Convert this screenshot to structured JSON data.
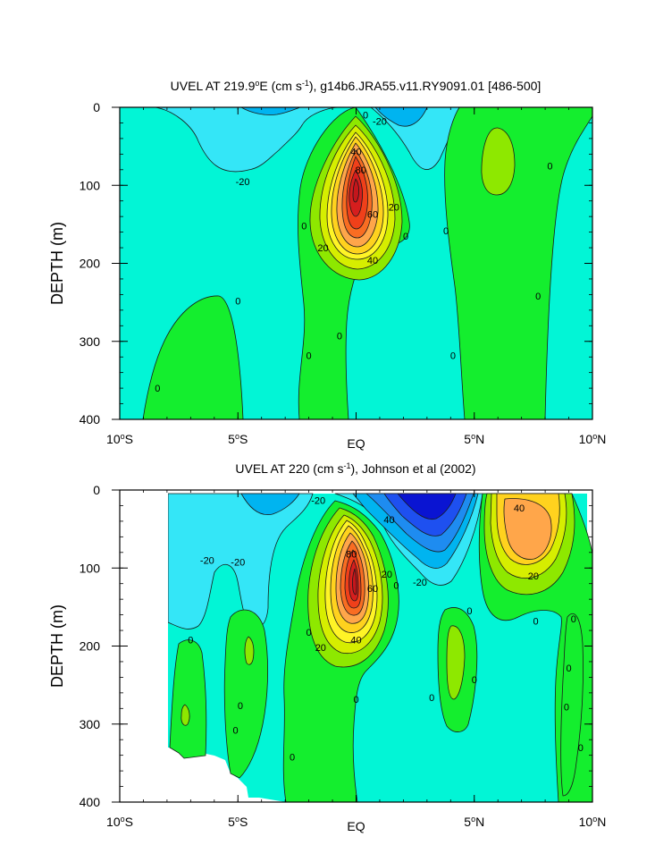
{
  "chart_data": [
    {
      "type": "contour",
      "title_prefix": "UVEL AT 219.9",
      "title_sup": "o",
      "title_mid": "E (cm s",
      "title_sup2": "-1",
      "title_suffix": "), g14b6.JRA55.v11.RY9091.01 [486-500]",
      "xlabel": "",
      "ylabel": "DEPTH (m)",
      "xlim": [
        -10,
        10
      ],
      "ylim": [
        400,
        0
      ],
      "x_ticks": [
        {
          "value": -10,
          "num": "10",
          "sup": "o",
          "suffix": "S"
        },
        {
          "value": -5,
          "num": "5",
          "sup": "o",
          "suffix": "S"
        },
        {
          "value": 0,
          "num": "",
          "sup": "",
          "suffix": "EQ"
        },
        {
          "value": 5,
          "num": "5",
          "sup": "o",
          "suffix": "N"
        },
        {
          "value": 10,
          "num": "10",
          "sup": "o",
          "suffix": "N"
        }
      ],
      "y_ticks": [
        0,
        100,
        200,
        300,
        400
      ],
      "contour_labels": [
        {
          "x": 0.4,
          "y": 10,
          "text": "0"
        },
        {
          "x": 1.0,
          "y": 18,
          "text": "-20"
        },
        {
          "x": -4.8,
          "y": 95,
          "text": "-20"
        },
        {
          "x": 0.0,
          "y": 57,
          "text": "40"
        },
        {
          "x": 0.2,
          "y": 80,
          "text": "80"
        },
        {
          "x": 0.7,
          "y": 137,
          "text": "60"
        },
        {
          "x": 1.6,
          "y": 128,
          "text": "20"
        },
        {
          "x": -1.4,
          "y": 180,
          "text": "20"
        },
        {
          "x": 0.7,
          "y": 196,
          "text": "40"
        },
        {
          "x": -2.2,
          "y": 152,
          "text": "0"
        },
        {
          "x": 2.1,
          "y": 165,
          "text": "0"
        },
        {
          "x": 3.8,
          "y": 158,
          "text": "0"
        },
        {
          "x": 8.2,
          "y": 75,
          "text": "0"
        },
        {
          "x": 7.7,
          "y": 242,
          "text": "0"
        },
        {
          "x": -5.0,
          "y": 248,
          "text": "0"
        },
        {
          "x": -0.7,
          "y": 293,
          "text": "0"
        },
        {
          "x": -2.0,
          "y": 318,
          "text": "0"
        },
        {
          "x": 4.1,
          "y": 318,
          "text": "0"
        },
        {
          "x": -8.4,
          "y": 360,
          "text": "0"
        }
      ],
      "color_levels": [
        {
          "level": "-40 to -30",
          "color": "#00b4f0"
        },
        {
          "level": "-20 to -10",
          "color": "#34e6f7"
        },
        {
          "level": "-10 to 0",
          "color": "#02f5d6"
        },
        {
          "level": "0 to 10",
          "color": "#14ee2e"
        },
        {
          "level": "10 to 20",
          "color": "#8ee800"
        },
        {
          "level": "20 to 30",
          "color": "#d6ee00"
        },
        {
          "level": "30 to 40",
          "color": "#fff426"
        },
        {
          "level": "40 to 50",
          "color": "#ffd21e"
        },
        {
          "level": "50 to 60",
          "color": "#ffa64a"
        },
        {
          "level": "60 to 70",
          "color": "#f96d22"
        },
        {
          "level": "70 to 80",
          "color": "#f0401a"
        },
        {
          "level": "80 to 90",
          "color": "#d61e1e"
        }
      ]
    },
    {
      "type": "contour",
      "title_prefix": "UVEL AT 220 (cm s",
      "title_sup": "-1",
      "title_mid": "",
      "title_sup2": "",
      "title_suffix": "), Johnson et al (2002)",
      "xlabel": "",
      "ylabel": "DEPTH (m)",
      "xlim": [
        -10,
        10
      ],
      "ylim": [
        400,
        0
      ],
      "x_ticks": [
        {
          "value": -10,
          "num": "10",
          "sup": "o",
          "suffix": "S"
        },
        {
          "value": -5,
          "num": "5",
          "sup": "o",
          "suffix": "S"
        },
        {
          "value": 0,
          "num": "",
          "sup": "",
          "suffix": "EQ"
        },
        {
          "value": 5,
          "num": "5",
          "sup": "o",
          "suffix": "N"
        },
        {
          "value": 10,
          "num": "10",
          "sup": "o",
          "suffix": "N"
        }
      ],
      "y_ticks": [
        0,
        100,
        200,
        300,
        400
      ],
      "contour_labels": [
        {
          "x": -1.6,
          "y": 13,
          "text": "-20"
        },
        {
          "x": 1.4,
          "y": 38,
          "text": "40"
        },
        {
          "x": 6.9,
          "y": 23,
          "text": "40"
        },
        {
          "x": -6.3,
          "y": 90,
          "text": "-20"
        },
        {
          "x": -5.0,
          "y": 92,
          "text": "-20"
        },
        {
          "x": -0.2,
          "y": 82,
          "text": "80"
        },
        {
          "x": 1.3,
          "y": 108,
          "text": "20"
        },
        {
          "x": 0.7,
          "y": 126,
          "text": "60"
        },
        {
          "x": 2.7,
          "y": 118,
          "text": "-20"
        },
        {
          "x": 1.7,
          "y": 122,
          "text": "0"
        },
        {
          "x": 7.5,
          "y": 110,
          "text": "20"
        },
        {
          "x": 4.8,
          "y": 155,
          "text": "0"
        },
        {
          "x": 7.6,
          "y": 168,
          "text": "0"
        },
        {
          "x": 9.2,
          "y": 165,
          "text": "0"
        },
        {
          "x": -1.5,
          "y": 202,
          "text": "20"
        },
        {
          "x": 0.0,
          "y": 192,
          "text": "40"
        },
        {
          "x": -2.0,
          "y": 182,
          "text": "0"
        },
        {
          "x": -7.0,
          "y": 192,
          "text": "0"
        },
        {
          "x": 5.0,
          "y": 243,
          "text": "0"
        },
        {
          "x": 9.0,
          "y": 228,
          "text": "0"
        },
        {
          "x": 0.0,
          "y": 268,
          "text": "0"
        },
        {
          "x": 3.2,
          "y": 266,
          "text": "0"
        },
        {
          "x": -4.9,
          "y": 276,
          "text": "0"
        },
        {
          "x": 8.9,
          "y": 278,
          "text": "0"
        },
        {
          "x": -5.1,
          "y": 308,
          "text": "0"
        },
        {
          "x": 9.5,
          "y": 330,
          "text": "0"
        },
        {
          "x": -2.7,
          "y": 342,
          "text": "0"
        }
      ],
      "color_levels": [
        {
          "level": "-60 to -50",
          "color": "#0a14d2"
        },
        {
          "level": "-50 to -40",
          "color": "#1e50f0"
        },
        {
          "level": "-40 to -30",
          "color": "#1e8cf0"
        },
        {
          "level": "-30 to -20",
          "color": "#00b4f0"
        },
        {
          "level": "-20 to -10",
          "color": "#34e6f7"
        },
        {
          "level": "-10 to 0",
          "color": "#02f5d6"
        },
        {
          "level": "0 to 10",
          "color": "#14ee2e"
        },
        {
          "level": "10 to 20",
          "color": "#8ee800"
        },
        {
          "level": "20 to 30",
          "color": "#d6ee00"
        },
        {
          "level": "30 to 40",
          "color": "#fff426"
        },
        {
          "level": "40 to 50",
          "color": "#ffd21e"
        },
        {
          "level": "50 to 60",
          "color": "#ffa64a"
        },
        {
          "level": "60 to 70",
          "color": "#f96d22"
        },
        {
          "level": "70 to 80",
          "color": "#f0401a"
        },
        {
          "level": "80 to 90",
          "color": "#d61e1e"
        }
      ]
    }
  ]
}
